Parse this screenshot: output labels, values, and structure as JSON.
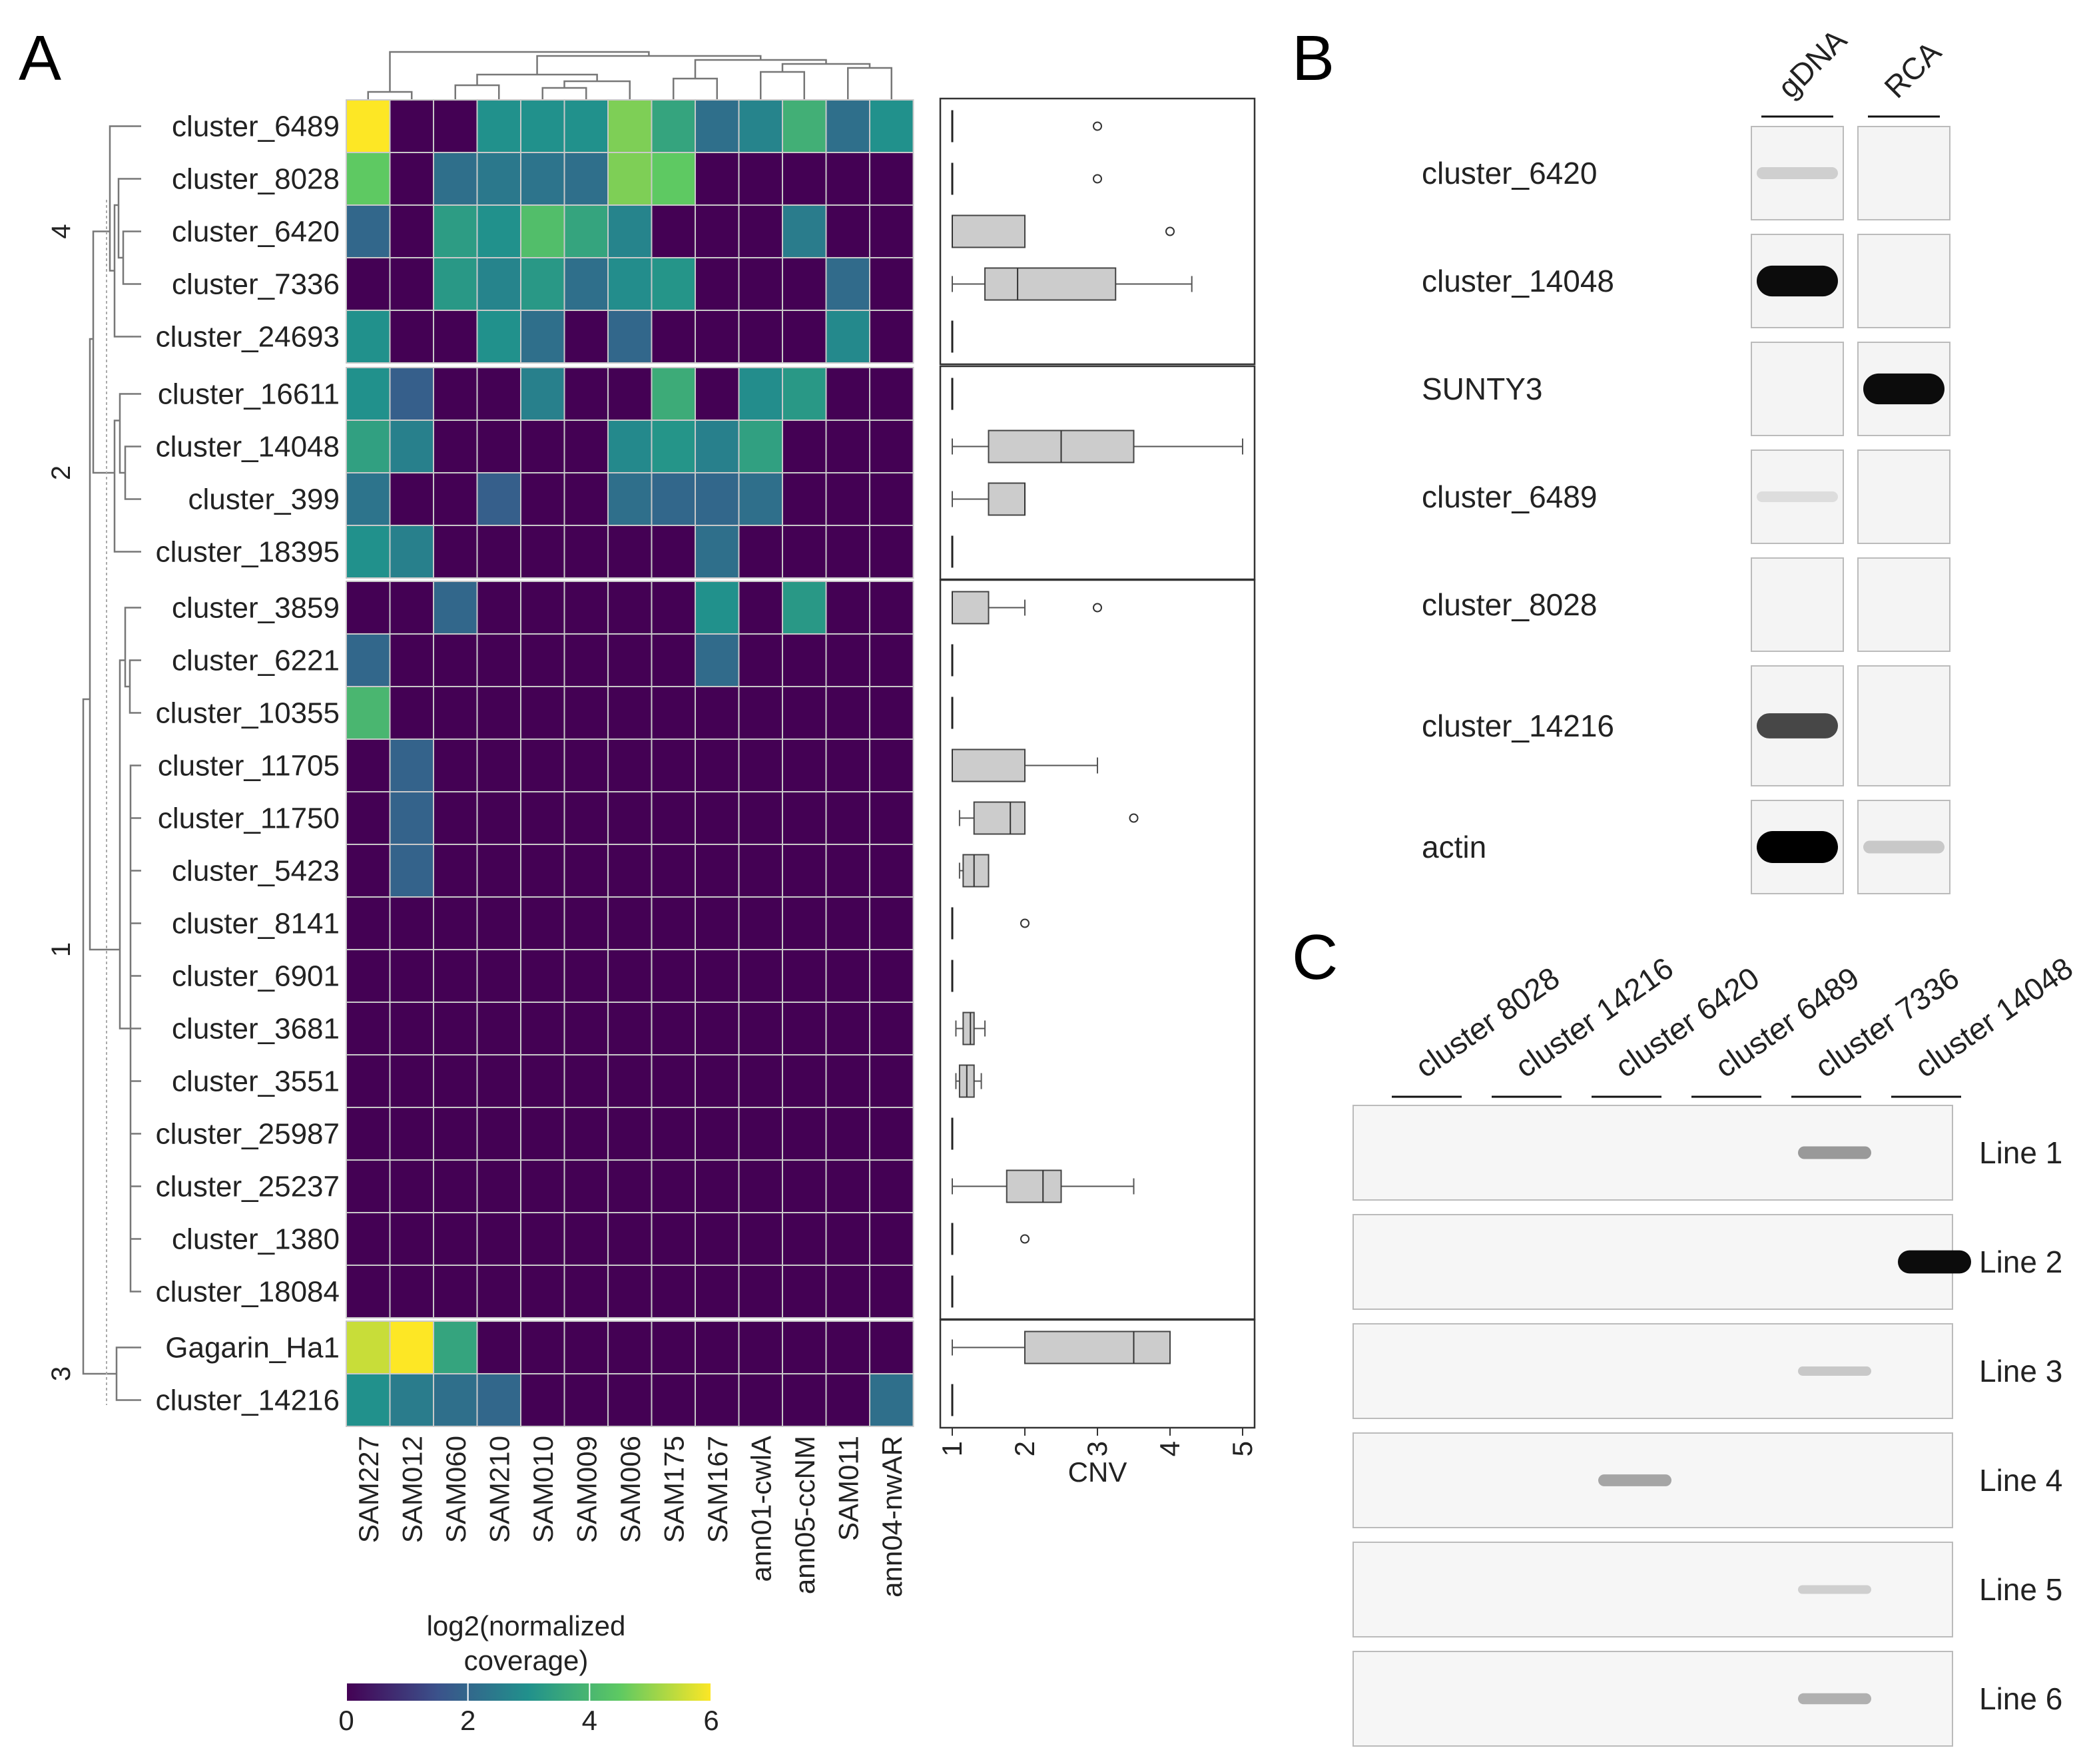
{
  "panels": {
    "a": "A",
    "b": "B",
    "c": "C"
  },
  "heatmap": {
    "rows": [
      {
        "label": "cluster_6489",
        "group": 4
      },
      {
        "label": "cluster_8028",
        "group": 4
      },
      {
        "label": "cluster_6420",
        "group": 4
      },
      {
        "label": "cluster_7336",
        "group": 4
      },
      {
        "label": "cluster_24693",
        "group": 4
      },
      {
        "label": "cluster_16611",
        "group": 2
      },
      {
        "label": "cluster_14048",
        "group": 2
      },
      {
        "label": "cluster_399",
        "group": 2
      },
      {
        "label": "cluster_18395",
        "group": 2
      },
      {
        "label": "cluster_3859",
        "group": 1
      },
      {
        "label": "cluster_6221",
        "group": 1
      },
      {
        "label": "cluster_10355",
        "group": 1
      },
      {
        "label": "cluster_11705",
        "group": 1
      },
      {
        "label": "cluster_11750",
        "group": 1
      },
      {
        "label": "cluster_5423",
        "group": 1
      },
      {
        "label": "cluster_8141",
        "group": 1
      },
      {
        "label": "cluster_6901",
        "group": 1
      },
      {
        "label": "cluster_3681",
        "group": 1
      },
      {
        "label": "cluster_3551",
        "group": 1
      },
      {
        "label": "cluster_25987",
        "group": 1
      },
      {
        "label": "cluster_25237",
        "group": 1
      },
      {
        "label": "cluster_1380",
        "group": 1
      },
      {
        "label": "cluster_18084",
        "group": 1
      },
      {
        "label": "Gagarin_Ha1",
        "group": 3
      },
      {
        "label": "cluster_14216",
        "group": 3
      }
    ],
    "columns": [
      "SAM227",
      "SAM012",
      "SAM060",
      "SAM210",
      "SAM010",
      "SAM009",
      "SAM006",
      "SAM175",
      "SAM167",
      "ann01-cwlA",
      "ann05-ccNM",
      "SAM011",
      "ann04-nwAR"
    ],
    "groups": [
      "4",
      "2",
      "1",
      "3"
    ],
    "values": [
      [
        6,
        0,
        0,
        3,
        3,
        3,
        4.8,
        3.5,
        2.2,
        2.7,
        3.8,
        2.2,
        3
      ],
      [
        4.5,
        0,
        2.2,
        2.4,
        2.3,
        2.2,
        4.8,
        4.5,
        0,
        0,
        0,
        0,
        0
      ],
      [
        2,
        0,
        3.3,
        3,
        4.2,
        3.5,
        2.7,
        0,
        0,
        0,
        2.5,
        0,
        0
      ],
      [
        0,
        0,
        3.2,
        2.7,
        3.2,
        2.2,
        2.9,
        3.1,
        0,
        0,
        0,
        2.1,
        0
      ],
      [
        3,
        0,
        0,
        3,
        2.2,
        0,
        2,
        0,
        0,
        0,
        0,
        2.8,
        0
      ],
      [
        3,
        1.8,
        0,
        0,
        2.6,
        0,
        0,
        3.7,
        0,
        2.9,
        3.2,
        0,
        0
      ],
      [
        3.4,
        2.6,
        0,
        0,
        0,
        0,
        2.8,
        3.1,
        2.6,
        3.4,
        0,
        0,
        0
      ],
      [
        2.3,
        0,
        0,
        1.8,
        0,
        0,
        2.2,
        2,
        2,
        2.2,
        0,
        0,
        0
      ],
      [
        3,
        2.6,
        0,
        0,
        0,
        0,
        0,
        0,
        2.2,
        0,
        0,
        0,
        0
      ],
      [
        0,
        0,
        2,
        0,
        0,
        0,
        0,
        0,
        3,
        0,
        3.2,
        0,
        0
      ],
      [
        2,
        0,
        0,
        0,
        0,
        0,
        0,
        0,
        2.1,
        0,
        0,
        0,
        0
      ],
      [
        4,
        0,
        0,
        0,
        0,
        0,
        0,
        0,
        0,
        0,
        0,
        0,
        0
      ],
      [
        0,
        1.9,
        0,
        0,
        0,
        0,
        0,
        0,
        0,
        0,
        0,
        0,
        0
      ],
      [
        0,
        1.9,
        0,
        0,
        0,
        0,
        0,
        0,
        0,
        0,
        0,
        0,
        0
      ],
      [
        0,
        1.9,
        0,
        0,
        0,
        0,
        0,
        0,
        0,
        0,
        0,
        0,
        0
      ],
      [
        0,
        0,
        0,
        0,
        0,
        0,
        0,
        0,
        0,
        0,
        0,
        0,
        0
      ],
      [
        0,
        0,
        0,
        0,
        0,
        0,
        0,
        0,
        0,
        0,
        0,
        0,
        0
      ],
      [
        0,
        0,
        0,
        0,
        0,
        0,
        0,
        0,
        0,
        0,
        0,
        0,
        0
      ],
      [
        0,
        0,
        0,
        0,
        0,
        0,
        0,
        0,
        0,
        0,
        0,
        0,
        0
      ],
      [
        0,
        0,
        0,
        0,
        0,
        0,
        0,
        0,
        0,
        0,
        0,
        0,
        0
      ],
      [
        0,
        0,
        0,
        0,
        0,
        0,
        0,
        0,
        0,
        0,
        0,
        0,
        0
      ],
      [
        0,
        0,
        0,
        0,
        0,
        0,
        0,
        0,
        0,
        0,
        0,
        0,
        0
      ],
      [
        0,
        0,
        0,
        0,
        0,
        0,
        0,
        0,
        0,
        0,
        0,
        0,
        0
      ],
      [
        5.5,
        6,
        3.5,
        0,
        0,
        0,
        0,
        0,
        0,
        0,
        0,
        0,
        0
      ],
      [
        3,
        2.5,
        2.2,
        2,
        0,
        0,
        0,
        0,
        0,
        0,
        0,
        0,
        2.2
      ]
    ],
    "colorbar": {
      "title_line1": "log2(normalized",
      "title_line2": "coverage)",
      "ticks": [
        "0",
        "2",
        "4",
        "6"
      ],
      "range": [
        0,
        6
      ],
      "stops": [
        "#440154",
        "#3b528b",
        "#21918c",
        "#5ec962",
        "#fde725"
      ]
    }
  },
  "boxplot": {
    "xlabel": "CNV",
    "ticks": [
      "1",
      "2",
      "3",
      "4",
      "5"
    ],
    "xlim": [
      1,
      5
    ],
    "boxes": [
      {
        "min": 1,
        "q1": 1,
        "median": 1,
        "q3": 1,
        "max": 1,
        "outliers": [
          3
        ]
      },
      {
        "min": 1,
        "q1": 1,
        "median": 1,
        "q3": 1,
        "max": 1,
        "outliers": [
          3
        ]
      },
      {
        "min": 1,
        "q1": 1,
        "median": 1,
        "q3": 2,
        "max": 2,
        "outliers": [
          4
        ]
      },
      {
        "min": 1,
        "q1": 1.45,
        "median": 1.9,
        "q3": 3.25,
        "max": 4.3,
        "outliers": []
      },
      {
        "min": 1,
        "q1": 1,
        "median": 1,
        "q3": 1,
        "max": 1,
        "outliers": []
      },
      {
        "min": 1,
        "q1": 1,
        "median": 1,
        "q3": 1,
        "max": 1,
        "outliers": []
      },
      {
        "min": 1,
        "q1": 1.5,
        "median": 2.5,
        "q3": 3.5,
        "max": 5,
        "outliers": []
      },
      {
        "min": 1,
        "q1": 1.5,
        "median": 2,
        "q3": 2,
        "max": 2,
        "outliers": []
      },
      {
        "min": 1,
        "q1": 1,
        "median": 1,
        "q3": 1,
        "max": 1,
        "outliers": []
      },
      {
        "min": 1,
        "q1": 1,
        "median": 1,
        "q3": 1.5,
        "max": 2,
        "outliers": [
          3
        ]
      },
      {
        "min": 1,
        "q1": 1,
        "median": 1,
        "q3": 1,
        "max": 1,
        "outliers": []
      },
      {
        "min": 1,
        "q1": 1,
        "median": 1,
        "q3": 1,
        "max": 1,
        "outliers": []
      },
      {
        "min": 1,
        "q1": 1,
        "median": 1,
        "q3": 2,
        "max": 3,
        "outliers": []
      },
      {
        "min": 1.1,
        "q1": 1.3,
        "median": 1.8,
        "q3": 2,
        "max": 2,
        "outliers": [
          3.5
        ]
      },
      {
        "min": 1.1,
        "q1": 1.15,
        "median": 1.3,
        "q3": 1.5,
        "max": 1.5,
        "outliers": []
      },
      {
        "min": 1,
        "q1": 1,
        "median": 1,
        "q3": 1,
        "max": 1,
        "outliers": [
          2
        ]
      },
      {
        "min": 1,
        "q1": 1,
        "median": 1,
        "q3": 1,
        "max": 1,
        "outliers": []
      },
      {
        "min": 1.05,
        "q1": 1.15,
        "median": 1.25,
        "q3": 1.3,
        "max": 1.45,
        "outliers": []
      },
      {
        "min": 1.05,
        "q1": 1.1,
        "median": 1.2,
        "q3": 1.3,
        "max": 1.4,
        "outliers": []
      },
      {
        "min": 1,
        "q1": 1,
        "median": 1,
        "q3": 1,
        "max": 1,
        "outliers": []
      },
      {
        "min": 1,
        "q1": 1.75,
        "median": 2.25,
        "q3": 2.5,
        "max": 3.5,
        "outliers": []
      },
      {
        "min": 1,
        "q1": 1,
        "median": 1,
        "q3": 1,
        "max": 1,
        "outliers": [
          2
        ]
      },
      {
        "min": 1,
        "q1": 1,
        "median": 1,
        "q3": 1,
        "max": 1,
        "outliers": []
      },
      {
        "min": 1,
        "q1": 2,
        "median": 3.5,
        "q3": 4,
        "max": 4,
        "outliers": []
      },
      {
        "min": 1,
        "q1": 1,
        "median": 1,
        "q3": 1,
        "max": 1,
        "outliers": []
      }
    ]
  },
  "gel_b": {
    "lanes": [
      "gDNA",
      "RCA"
    ],
    "rows": [
      {
        "label": "cluster_6420",
        "gdna": 0.12,
        "rca": 0
      },
      {
        "label": "cluster_14048",
        "gdna": 0.95,
        "rca": 0
      },
      {
        "label": "SUNTY3",
        "gdna": 0,
        "rca": 0.95
      },
      {
        "label": "cluster_6489",
        "gdna": 0.06,
        "rca": 0
      },
      {
        "label": "cluster_8028",
        "gdna": 0,
        "rca": 0
      },
      {
        "label": "cluster_14216",
        "gdna": 0.7,
        "rca": 0
      },
      {
        "label": "actin",
        "gdna": 1,
        "rca": 0.15
      }
    ]
  },
  "gel_c": {
    "columns": [
      "cluster 8028",
      "cluster 14216",
      "cluster 6420",
      "cluster 6489",
      "cluster 7336",
      "cluster 14048"
    ],
    "lines": [
      "Line 1",
      "Line 2",
      "Line 3",
      "Line 4",
      "Line 5",
      "Line 6"
    ],
    "bands": [
      [
        0,
        0,
        0,
        0,
        0.35,
        0
      ],
      [
        0,
        0,
        0,
        0,
        0,
        0.95
      ],
      [
        0,
        0,
        0,
        0,
        0.15,
        0
      ],
      [
        0,
        0,
        0.3,
        0,
        0,
        0
      ],
      [
        0,
        0,
        0,
        0,
        0.12,
        0
      ],
      [
        0,
        0,
        0,
        0,
        0.25,
        0
      ]
    ]
  }
}
